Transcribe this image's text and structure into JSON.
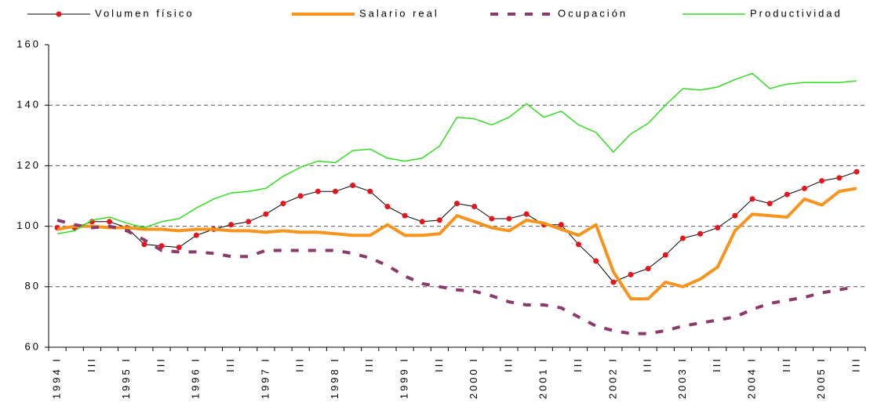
{
  "chart_data": {
    "type": "line",
    "categories": [
      "1994 I",
      null,
      "III",
      null,
      "1995 I",
      null,
      "III",
      null,
      "1996 I",
      null,
      "III",
      null,
      "1997 I",
      null,
      "III",
      null,
      "1998 I",
      null,
      "III",
      null,
      "1999 I",
      null,
      "III",
      null,
      "2000 I",
      null,
      "III",
      null,
      "2001 I",
      null,
      "III",
      null,
      "2002 I",
      null,
      "III",
      null,
      "2003 I",
      null,
      "III",
      null,
      "2004 I",
      null,
      "III",
      null,
      "2005 I",
      null,
      "III"
    ],
    "ylim": [
      60,
      160
    ],
    "yticks": [
      60,
      80,
      100,
      120,
      140,
      160
    ],
    "grid": true,
    "legend": "top",
    "series": [
      {
        "name": "Volumen físico",
        "color": "#000000",
        "line_width": 1,
        "markers": true,
        "marker_color": "#e8141c",
        "dashed": false,
        "values": [
          99.5,
          99.5,
          101.5,
          101.5,
          99.5,
          94,
          93.5,
          93,
          97,
          99,
          100.5,
          101.5,
          104,
          107.5,
          110,
          111.5,
          111.5,
          113.5,
          111.5,
          106.5,
          103.5,
          101.5,
          102,
          107.5,
          106.5,
          102.5,
          102.5,
          104,
          100.5,
          100.5,
          94,
          88.5,
          81.5,
          84,
          86,
          90.5,
          96,
          97.5,
          99.5,
          103.5,
          109,
          107.5,
          110.5,
          112.5,
          115,
          116,
          118
        ]
      },
      {
        "name": "Salario real",
        "color": "#f7941d",
        "line_width": 4,
        "markers": false,
        "dashed": false,
        "values": [
          99,
          100,
          100,
          99.5,
          99.5,
          99,
          99,
          98.5,
          99,
          99,
          98.5,
          98.5,
          98,
          98.5,
          98,
          98,
          97.5,
          97,
          97,
          100.5,
          97,
          97,
          97.5,
          103.5,
          101.5,
          99.5,
          98.5,
          102,
          101,
          99,
          97,
          100.5,
          85,
          76,
          76,
          81.5,
          80,
          82.5,
          86.5,
          98.5,
          104,
          103.5,
          103,
          109,
          107,
          111.5,
          112.5
        ]
      },
      {
        "name": "Ocupación",
        "color": "#8b3a6b",
        "line_width": 4,
        "markers": false,
        "dashed": true,
        "values": [
          102,
          100.5,
          99.5,
          100,
          98.5,
          95.5,
          92,
          91.5,
          91.5,
          91,
          90,
          90,
          92,
          92,
          92,
          92,
          92,
          91,
          89.5,
          87,
          83.5,
          81,
          80,
          79,
          78.5,
          77,
          75,
          74,
          74,
          73,
          70,
          67,
          65.5,
          64.5,
          64.5,
          65.5,
          67,
          68,
          69,
          70,
          72.5,
          74.5,
          75.5,
          76.5,
          78,
          79,
          80
        ]
      },
      {
        "name": "Productividad",
        "color": "#33dd22",
        "line_width": 1.5,
        "markers": false,
        "dashed": false,
        "values": [
          97.5,
          98.5,
          102,
          103,
          101,
          99.5,
          101.5,
          102.5,
          106,
          109,
          111,
          111.5,
          112.5,
          116.5,
          119.5,
          121.5,
          121,
          125,
          125.5,
          122.5,
          121.5,
          122.5,
          126.5,
          136,
          135.5,
          133.5,
          136,
          140.5,
          136,
          138,
          133.5,
          131,
          124.5,
          130.5,
          134,
          140,
          145.5,
          145,
          146,
          148.5,
          150.5,
          145.5,
          147,
          147.5,
          147.5,
          147.5,
          148
        ]
      }
    ]
  }
}
